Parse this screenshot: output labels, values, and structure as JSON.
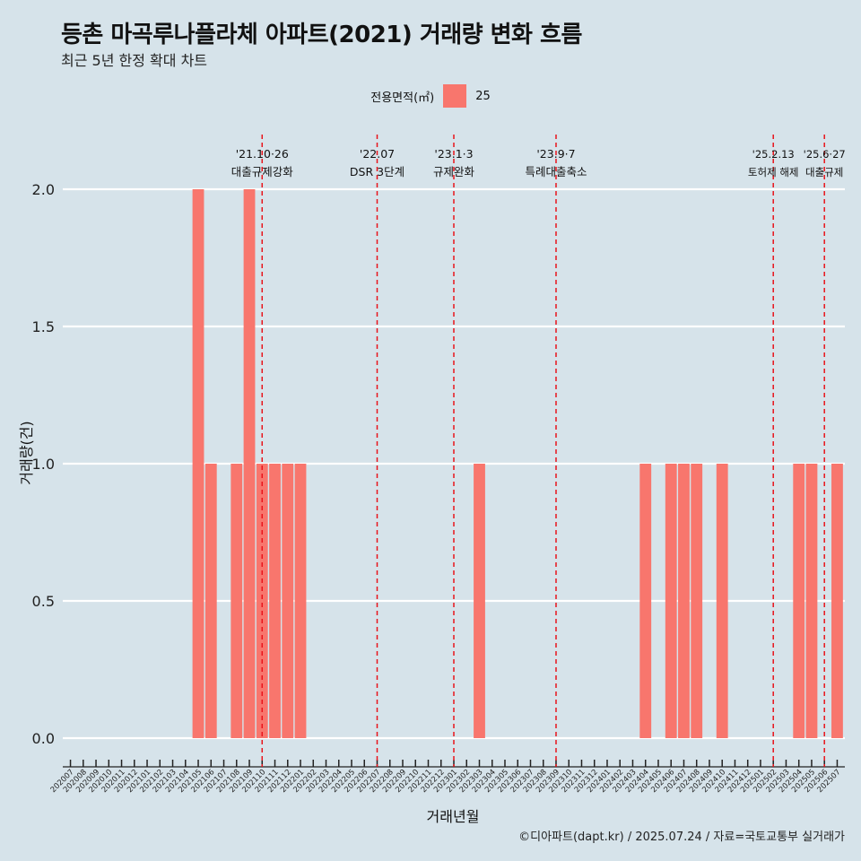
{
  "title": "등촌 마곡루나플라체 아파트(2021) 거래량 변화 흐름",
  "subtitle": "최근 5년 한정 확대 차트",
  "legend": {
    "title": "전용면적(㎡)",
    "items": [
      {
        "label": "25",
        "color": "#f8766d"
      }
    ]
  },
  "caption": "©디아파트(dapt.kr) / 2025.07.24 / 자료=국토교통부 실거래가",
  "chart_data": {
    "type": "bar",
    "xlabel": "거래년월",
    "ylabel": "거래량(건)",
    "ylim": [
      0,
      2
    ],
    "yticks": [
      0.0,
      0.5,
      1.0,
      1.5,
      2.0
    ],
    "ytick_labels": [
      "0.0",
      "0.5",
      "1.0",
      "1.5",
      "2.0"
    ],
    "grid": true,
    "legend_position": "top",
    "bar_color": "#f8766d",
    "categories": [
      "202007",
      "202008",
      "202009",
      "202010",
      "202011",
      "202012",
      "202101",
      "202102",
      "202103",
      "202104",
      "202105",
      "202106",
      "202107",
      "202108",
      "202109",
      "202110",
      "202111",
      "202112",
      "202201",
      "202202",
      "202203",
      "202204",
      "202205",
      "202206",
      "202207",
      "202208",
      "202209",
      "202210",
      "202211",
      "202212",
      "202301",
      "202302",
      "202303",
      "202304",
      "202305",
      "202306",
      "202307",
      "202308",
      "202309",
      "202310",
      "202311",
      "202312",
      "202401",
      "202402",
      "202403",
      "202404",
      "202405",
      "202406",
      "202407",
      "202408",
      "202409",
      "202410",
      "202411",
      "202412",
      "202501",
      "202502",
      "202503",
      "202504",
      "202505",
      "202506",
      "202507"
    ],
    "series": [
      {
        "name": "25",
        "values": [
          0,
          0,
          0,
          0,
          0,
          0,
          0,
          0,
          0,
          0,
          2,
          1,
          0,
          1,
          2,
          1,
          1,
          1,
          1,
          0,
          0,
          0,
          0,
          0,
          0,
          0,
          0,
          0,
          0,
          0,
          0,
          0,
          1,
          0,
          0,
          0,
          0,
          0,
          0,
          0,
          0,
          0,
          0,
          0,
          0,
          1,
          0,
          1,
          1,
          1,
          0,
          1,
          0,
          0,
          0,
          0,
          0,
          1,
          1,
          0,
          1
        ]
      }
    ],
    "annotations": [
      {
        "x": "202110",
        "date": "'21.10·26",
        "label": "대출규제강화"
      },
      {
        "x": "202207",
        "date": "'22.07",
        "label": "DSR 3단계"
      },
      {
        "x": "202301",
        "date": "'23.1·3",
        "label": "규제완화"
      },
      {
        "x": "202309",
        "date": "'23.9·7",
        "label": "특례대출축소"
      },
      {
        "x": "202502",
        "date": "'25.2.13",
        "label": "토허제 해제"
      },
      {
        "x": "202506",
        "date": "'25.6·27",
        "label": "대출규제"
      }
    ]
  }
}
